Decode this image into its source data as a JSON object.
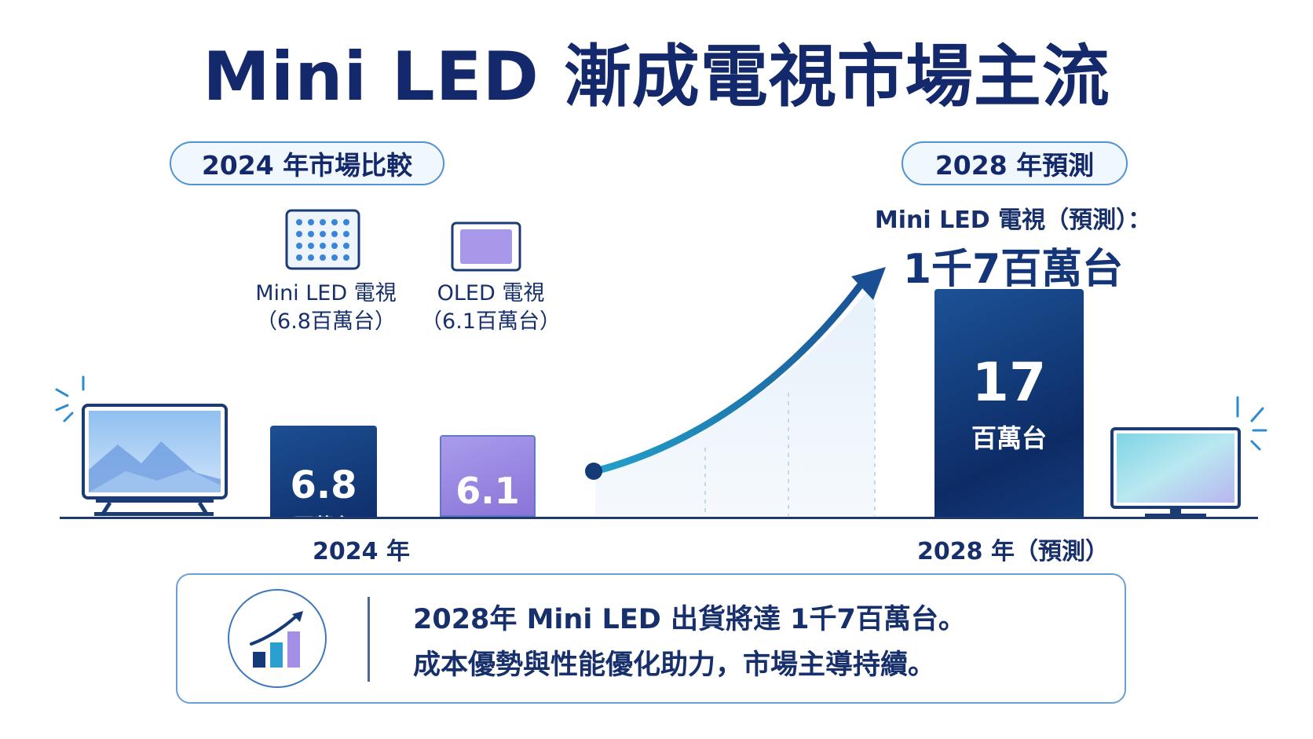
{
  "title": "Mini LED 漸成電視市場主流",
  "pill_left": "2024 年市場比較",
  "pill_right": "2028 年預測",
  "mini_label_line1": "Mini LED 電視",
  "mini_label_line2": "（6.8百萬台）",
  "oled_label_line1": "OLED 電視",
  "oled_label_line2": "（6.1百萬台）",
  "forecast_heading": "Mini LED 電視（預測）：",
  "forecast_value": "1千7百萬台",
  "bar_unit": "百萬台",
  "summary": {
    "line1": "2028年 Mini LED 出貨將達 1千7百萬台。",
    "line2": "成本優勢與性能優化助力，市場主導持續。"
  },
  "colors": {
    "navy": "#13296b",
    "mini_led_bar": "#173f80",
    "oled_bar": "#9b88e2",
    "trend": "#1f8fc4"
  },
  "icons": [
    "led-grid-icon",
    "oled-panel-icon",
    "tv-icon",
    "monitor-icon",
    "growth-chart-icon",
    "trend-arrow-icon"
  ],
  "chart_data": {
    "type": "bar",
    "unit": "百萬台",
    "categories": [
      "2024 年",
      "2028 年（預測）"
    ],
    "bars": [
      {
        "category": "2024 年",
        "series": "Mini LED 電視",
        "value": 6.8,
        "label": "6.8"
      },
      {
        "category": "2024 年",
        "series": "OLED 電視",
        "value": 6.1,
        "label": "6.1"
      },
      {
        "category": "2028 年（預測）",
        "series": "Mini LED 電視",
        "value": 17,
        "label": "17"
      }
    ],
    "ylim": [
      0,
      17
    ],
    "grid": false,
    "annotations": [
      "upward trend arrow from 2024 to 2028"
    ]
  }
}
